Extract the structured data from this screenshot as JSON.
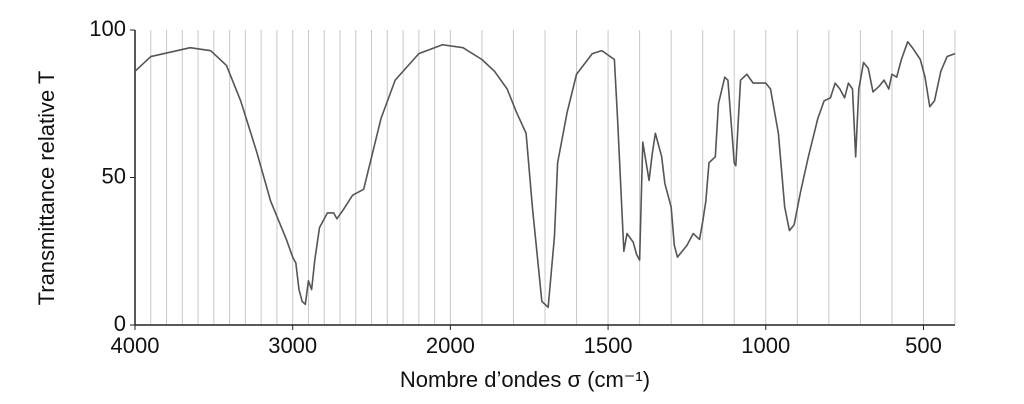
{
  "chart_data": {
    "type": "line",
    "xlabel": "Nombre d’ondes σ (cm⁻¹)",
    "ylabel": "Transmittance relative T",
    "x": [
      4000,
      3900,
      3650,
      3520,
      3420,
      3330,
      3230,
      3140,
      3040,
      3000,
      2980,
      2960,
      2940,
      2920,
      2900,
      2880,
      2860,
      2830,
      2780,
      2740,
      2720,
      2680,
      2620,
      2550,
      2440,
      2350,
      2200,
      2050,
      1960,
      1900,
      1860,
      1820,
      1790,
      1760,
      1740,
      1710,
      1690,
      1670,
      1660,
      1630,
      1600,
      1550,
      1520,
      1480,
      1470,
      1450,
      1440,
      1420,
      1410,
      1400,
      1390,
      1370,
      1360,
      1350,
      1330,
      1320,
      1300,
      1290,
      1280,
      1250,
      1230,
      1210,
      1200,
      1190,
      1180,
      1160,
      1150,
      1130,
      1120,
      1100,
      1095,
      1080,
      1060,
      1040,
      1000,
      985,
      960,
      940,
      925,
      910,
      890,
      865,
      835,
      815,
      795,
      780,
      765,
      750,
      738,
      725,
      715,
      705,
      690,
      675,
      660,
      640,
      625,
      610,
      600,
      585,
      570,
      550,
      535,
      510,
      495,
      480,
      465,
      445,
      425,
      400
    ],
    "values": [
      86,
      91,
      94,
      93,
      88,
      76,
      59,
      42,
      29,
      23,
      21,
      12,
      8,
      7,
      15,
      12,
      22,
      33,
      38,
      38,
      36,
      39,
      44,
      46,
      70,
      83,
      92,
      95,
      94,
      90,
      86,
      80,
      72,
      65,
      40,
      8,
      6,
      30,
      55,
      72,
      85,
      92,
      93,
      90,
      70,
      25,
      31,
      28,
      24,
      22,
      62,
      49,
      58,
      65,
      57,
      48,
      40,
      27,
      23,
      27,
      31,
      29,
      35,
      42,
      55,
      57,
      75,
      84,
      83,
      55,
      54,
      83,
      85,
      82,
      82,
      80,
      65,
      40,
      32,
      34,
      45,
      57,
      70,
      76,
      77,
      82,
      80,
      77,
      82,
      80,
      57,
      80,
      89,
      87,
      79,
      81,
      83,
      80,
      85,
      84,
      90,
      96,
      94,
      90,
      84,
      74,
      76,
      86,
      91,
      92
    ],
    "color": "#555555",
    "xlim": [
      4000,
      400
    ],
    "xticks": [
      4000,
      3000,
      2000,
      1500,
      1000,
      500
    ],
    "xgrid": [
      4000,
      3900,
      3800,
      3700,
      3600,
      3500,
      3400,
      3300,
      3200,
      3100,
      3000,
      2900,
      2800,
      2700,
      2600,
      2500,
      2400,
      2300,
      2200,
      2100,
      2000,
      1900,
      1800,
      1700,
      1600,
      1500,
      1400,
      1300,
      1200,
      1100,
      1000,
      900,
      800,
      700,
      600,
      500,
      400
    ],
    "ylim": [
      0,
      100
    ],
    "yticks": [
      0,
      50,
      100
    ],
    "grid": true
  }
}
